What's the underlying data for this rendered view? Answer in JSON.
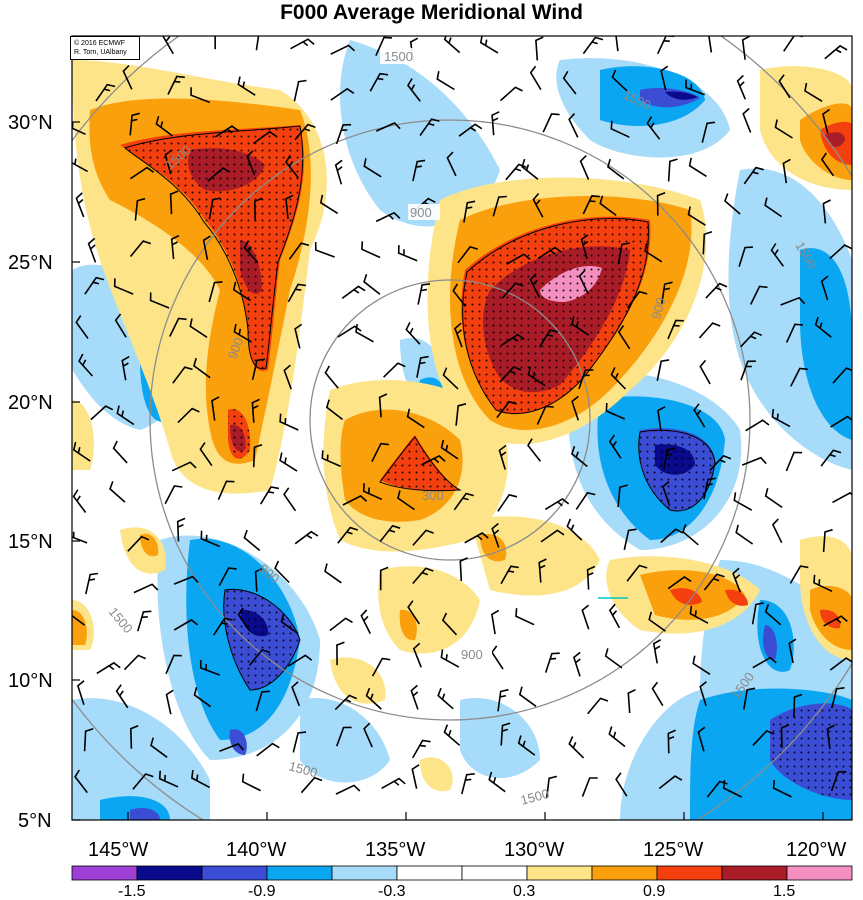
{
  "title": "F000 Average Meridional Wind",
  "credit": {
    "line1": "© 2016 ECMWF",
    "line2": "R. Torn, UAlbany"
  },
  "map": {
    "lon_range": [
      -147,
      -119
    ],
    "lat_range": [
      5,
      33
    ],
    "x_ticks": [
      "145°W",
      "140°W",
      "135°W",
      "130°W",
      "125°W",
      "120°W"
    ],
    "y_ticks": [
      "30°N",
      "25°N",
      "20°N",
      "15°N",
      "10°N",
      "5°N"
    ],
    "contour_labels": [
      "1500",
      "1500",
      "900",
      "1500",
      "1500",
      "300",
      "900",
      "900",
      "900",
      "900",
      "1500",
      "1500",
      "1500",
      "1500"
    ],
    "contour_color": "#8c8c8c",
    "vector_color": "#00c8c8"
  },
  "colorbar": {
    "colors": [
      "#9e3fd6",
      "#0a0a8c",
      "#3a4dd4",
      "#0aa6f2",
      "#a6dbfa",
      "#ffffff",
      "#ffffff",
      "#fde489",
      "#fba00d",
      "#f4400e",
      "#a91c28",
      "#f58fc2"
    ],
    "labels": [
      "-1.5",
      "-0.9",
      "-0.3",
      "0.3",
      "0.9",
      "1.5"
    ]
  }
}
